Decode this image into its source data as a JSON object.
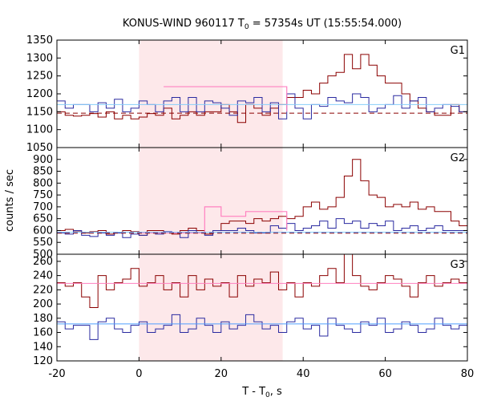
{
  "chart_data": {
    "type": "line",
    "title": {
      "prefix": "KONUS-WIND 960117 T",
      "sub": "0",
      "suffix": " = 57354s UT (15:55:54.000)"
    },
    "xlabel": {
      "prefix": "T - T",
      "sub": "0",
      "suffix": ", s"
    },
    "ylabel": "counts / sec",
    "xlim": [
      -20,
      80
    ],
    "xticks": [
      -20,
      0,
      20,
      40,
      60,
      80
    ],
    "step_s": 2.0,
    "highlight_interval": [
      0,
      35
    ],
    "colors": {
      "highlight": "#fde8ea",
      "data_red": "#8b0000",
      "data_blue": "#2a2aa0",
      "bg_red": "#8b0000",
      "bg_blue": "#6495ed",
      "avg_red": "#ff80c0",
      "avg_blue": "#4f9fff",
      "bg_cyan": "#87cefa"
    },
    "panels": [
      {
        "tag": "G1",
        "ylim": [
          1050,
          1350
        ],
        "yticks": [
          1050,
          1100,
          1150,
          1200,
          1250,
          1300,
          1350
        ],
        "series": [
          {
            "color_key": "data_red",
            "values": [
              1150,
              1140,
              1138,
              1140,
              1145,
              1135,
              1150,
              1130,
              1140,
              1130,
              1135,
              1145,
              1140,
              1160,
              1130,
              1140,
              1150,
              1140,
              1150,
              1150,
              1170,
              1150,
              1120,
              1170,
              1160,
              1140,
              1160,
              1170,
              1190,
              1190,
              1210,
              1200,
              1230,
              1250,
              1260,
              1310,
              1270,
              1310,
              1280,
              1250,
              1230,
              1230,
              1200,
              1180,
              1160,
              1150,
              1140,
              1140,
              1170,
              1150,
              1120,
              1150,
              1140,
              1130,
              1150,
              1160,
              1120,
              1140,
              1120,
              1110,
              1150,
              1140,
              1100,
              1150,
              1170,
              1150,
              1140,
              1150,
              1130,
              1170,
              1180,
              1150,
              1140,
              1160,
              1130,
              1100,
              1140,
              1160,
              1130,
              1120,
              1140,
              1150,
              1110,
              1170,
              1130,
              1140,
              1160,
              1130,
              1140,
              1100,
              1150,
              1120,
              1140,
              1130,
              1100,
              1160,
              1140,
              1120,
              1150,
              1130
            ]
          },
          {
            "color_key": "data_blue",
            "values": [
              1180,
              1160,
              1170,
              1170,
              1150,
              1175,
              1160,
              1185,
              1150,
              1160,
              1180,
              1170,
              1150,
              1180,
              1190,
              1150,
              1190,
              1150,
              1180,
              1175,
              1160,
              1140,
              1180,
              1175,
              1190,
              1150,
              1175,
              1130,
              1200,
              1160,
              1130,
              1170,
              1165,
              1190,
              1180,
              1175,
              1200,
              1190,
              1150,
              1160,
              1170,
              1195,
              1160,
              1180,
              1190,
              1150,
              1160,
              1170,
              1165,
              1150,
              1180,
              1150,
              1170,
              1160,
              1190,
              1170,
              1165,
              1150,
              1170,
              1160,
              1180,
              1150,
              1140,
              1175,
              1190,
              1170,
              1160,
              1180,
              1195,
              1170,
              1160,
              1185,
              1150,
              1175,
              1165,
              1170,
              1190,
              1150,
              1160,
              1175,
              1180,
              1170,
              1160,
              1180,
              1175,
              1150,
              1170,
              1160,
              1185,
              1160,
              1170,
              1180,
              1140,
              1160,
              1180,
              1170,
              1160,
              1170,
              1175,
              1160
            ]
          },
          {
            "color_key": "avg_red",
            "step": [
              [
                6,
                1220
              ],
              [
                36,
                1150
              ]
            ]
          },
          {
            "color_key": "bg_cyan",
            "flat": 1170,
            "range": [
              -20,
              80
            ]
          },
          {
            "color_key": "bg_red",
            "dashed": true,
            "flat": 1146,
            "range": [
              -20,
              80
            ]
          }
        ]
      },
      {
        "tag": "G2",
        "ylim": [
          500,
          950
        ],
        "yticks": [
          500,
          550,
          600,
          650,
          700,
          750,
          800,
          850,
          900
        ],
        "series": [
          {
            "color_key": "data_red",
            "values": [
              600,
              605,
              598,
              590,
              595,
              600,
              585,
              590,
              600,
              595,
              580,
              600,
              600,
              590,
              585,
              600,
              610,
              600,
              585,
              600,
              630,
              640,
              640,
              630,
              650,
              640,
              650,
              660,
              650,
              660,
              700,
              720,
              690,
              700,
              740,
              830,
              900,
              810,
              750,
              740,
              700,
              710,
              700,
              720,
              690,
              700,
              680,
              680,
              640,
              620,
              610,
              600,
              590,
              600,
              590,
              580,
              600,
              610,
              590,
              600,
              590,
              580,
              590,
              600,
              600,
              600,
              610,
              600,
              590,
              600,
              600,
              610,
              600,
              590,
              600,
              600,
              600,
              600,
              590,
              600,
              600,
              605,
              600,
              590,
              600,
              600,
              590,
              600,
              600,
              580,
              600,
              610,
              600,
              590,
              600,
              600,
              570,
              600,
              580,
              570
            ]
          },
          {
            "color_key": "data_blue",
            "values": [
              590,
              585,
              600,
              580,
              575,
              590,
              580,
              590,
              570,
              585,
              580,
              590,
              585,
              595,
              590,
              570,
              600,
              590,
              580,
              600,
              600,
              600,
              610,
              600,
              590,
              590,
              620,
              610,
              630,
              600,
              610,
              620,
              640,
              610,
              650,
              630,
              640,
              610,
              630,
              620,
              640,
              600,
              610,
              620,
              600,
              610,
              620,
              600,
              600,
              600,
              590,
              580,
              600,
              590,
              580,
              590,
              600,
              585,
              590,
              590,
              580,
              590,
              580,
              600,
              590,
              580,
              585,
              590,
              580,
              590,
              590,
              580,
              600,
              590,
              590,
              590,
              600,
              580,
              600,
              590,
              590,
              580,
              590,
              580,
              600,
              590,
              590,
              600,
              580,
              600,
              590,
              580,
              590,
              600,
              590,
              600,
              590,
              580,
              590,
              580
            ]
          },
          {
            "color_key": "avg_red",
            "step": [
              [
                0,
                590
              ],
              [
                16,
                700
              ],
              [
                20,
                660
              ],
              [
                26,
                680
              ],
              [
                36,
                600
              ]
            ]
          },
          {
            "color_key": "bg_cyan",
            "flat": 593,
            "range": [
              -20,
              80
            ]
          },
          {
            "color_key": "bg_red",
            "dashed": true,
            "flat": 589,
            "range": [
              -20,
              80
            ]
          },
          {
            "color_key": "bg_blue",
            "dashed": true,
            "flat": 592,
            "range": [
              -20,
              80
            ]
          }
        ]
      },
      {
        "tag": "G3",
        "ylim": [
          120,
          270
        ],
        "yticks": [
          120,
          140,
          160,
          180,
          200,
          220,
          240,
          260
        ],
        "series": [
          {
            "color_key": "data_red",
            "values": [
              230,
              225,
              230,
              210,
              195,
              240,
              220,
              230,
              235,
              250,
              225,
              230,
              240,
              220,
              230,
              210,
              240,
              220,
              235,
              225,
              230,
              210,
              240,
              225,
              235,
              230,
              245,
              220,
              230,
              210,
              230,
              225,
              240,
              250,
              230,
              270,
              240,
              225,
              220,
              230,
              240,
              235,
              225,
              210,
              230,
              240,
              225,
              230,
              235,
              230,
              240,
              220,
              230,
              225,
              245,
              230,
              225,
              235,
              240,
              230,
              210,
              230,
              225,
              235,
              230,
              195,
              220,
              240,
              230,
              230,
              235,
              225,
              240,
              230,
              215,
              240,
              220,
              235,
              230,
              225,
              230,
              240,
              230,
              225,
              230,
              235,
              225,
              220,
              240,
              230,
              225,
              235,
              230,
              220,
              230,
              225,
              230,
              240,
              225,
              230
            ]
          },
          {
            "color_key": "data_blue",
            "values": [
              175,
              165,
              170,
              170,
              150,
              175,
              180,
              165,
              160,
              170,
              175,
              160,
              165,
              170,
              185,
              160,
              165,
              180,
              170,
              160,
              175,
              165,
              170,
              185,
              175,
              165,
              170,
              160,
              175,
              180,
              165,
              170,
              155,
              180,
              170,
              165,
              160,
              175,
              170,
              180,
              160,
              165,
              175,
              170,
              160,
              165,
              180,
              170,
              165,
              170,
              190,
              165,
              170,
              160,
              175,
              165,
              170,
              185,
              160,
              165,
              170,
              165,
              175,
              160,
              170,
              165,
              170,
              180,
              165,
              170,
              165,
              175,
              160,
              170,
              165,
              170,
              175,
              180,
              160,
              165,
              170,
              160,
              175,
              165,
              170,
              175,
              170,
              165,
              160,
              175,
              170,
              165,
              170,
              175,
              165,
              170,
              165,
              160,
              175,
              170
            ]
          },
          {
            "color_key": "avg_blue",
            "flat": 172,
            "range": [
              -20,
              80
            ]
          },
          {
            "color_key": "avg_red",
            "flat": 229,
            "range": [
              -20,
              80
            ]
          }
        ]
      }
    ]
  }
}
